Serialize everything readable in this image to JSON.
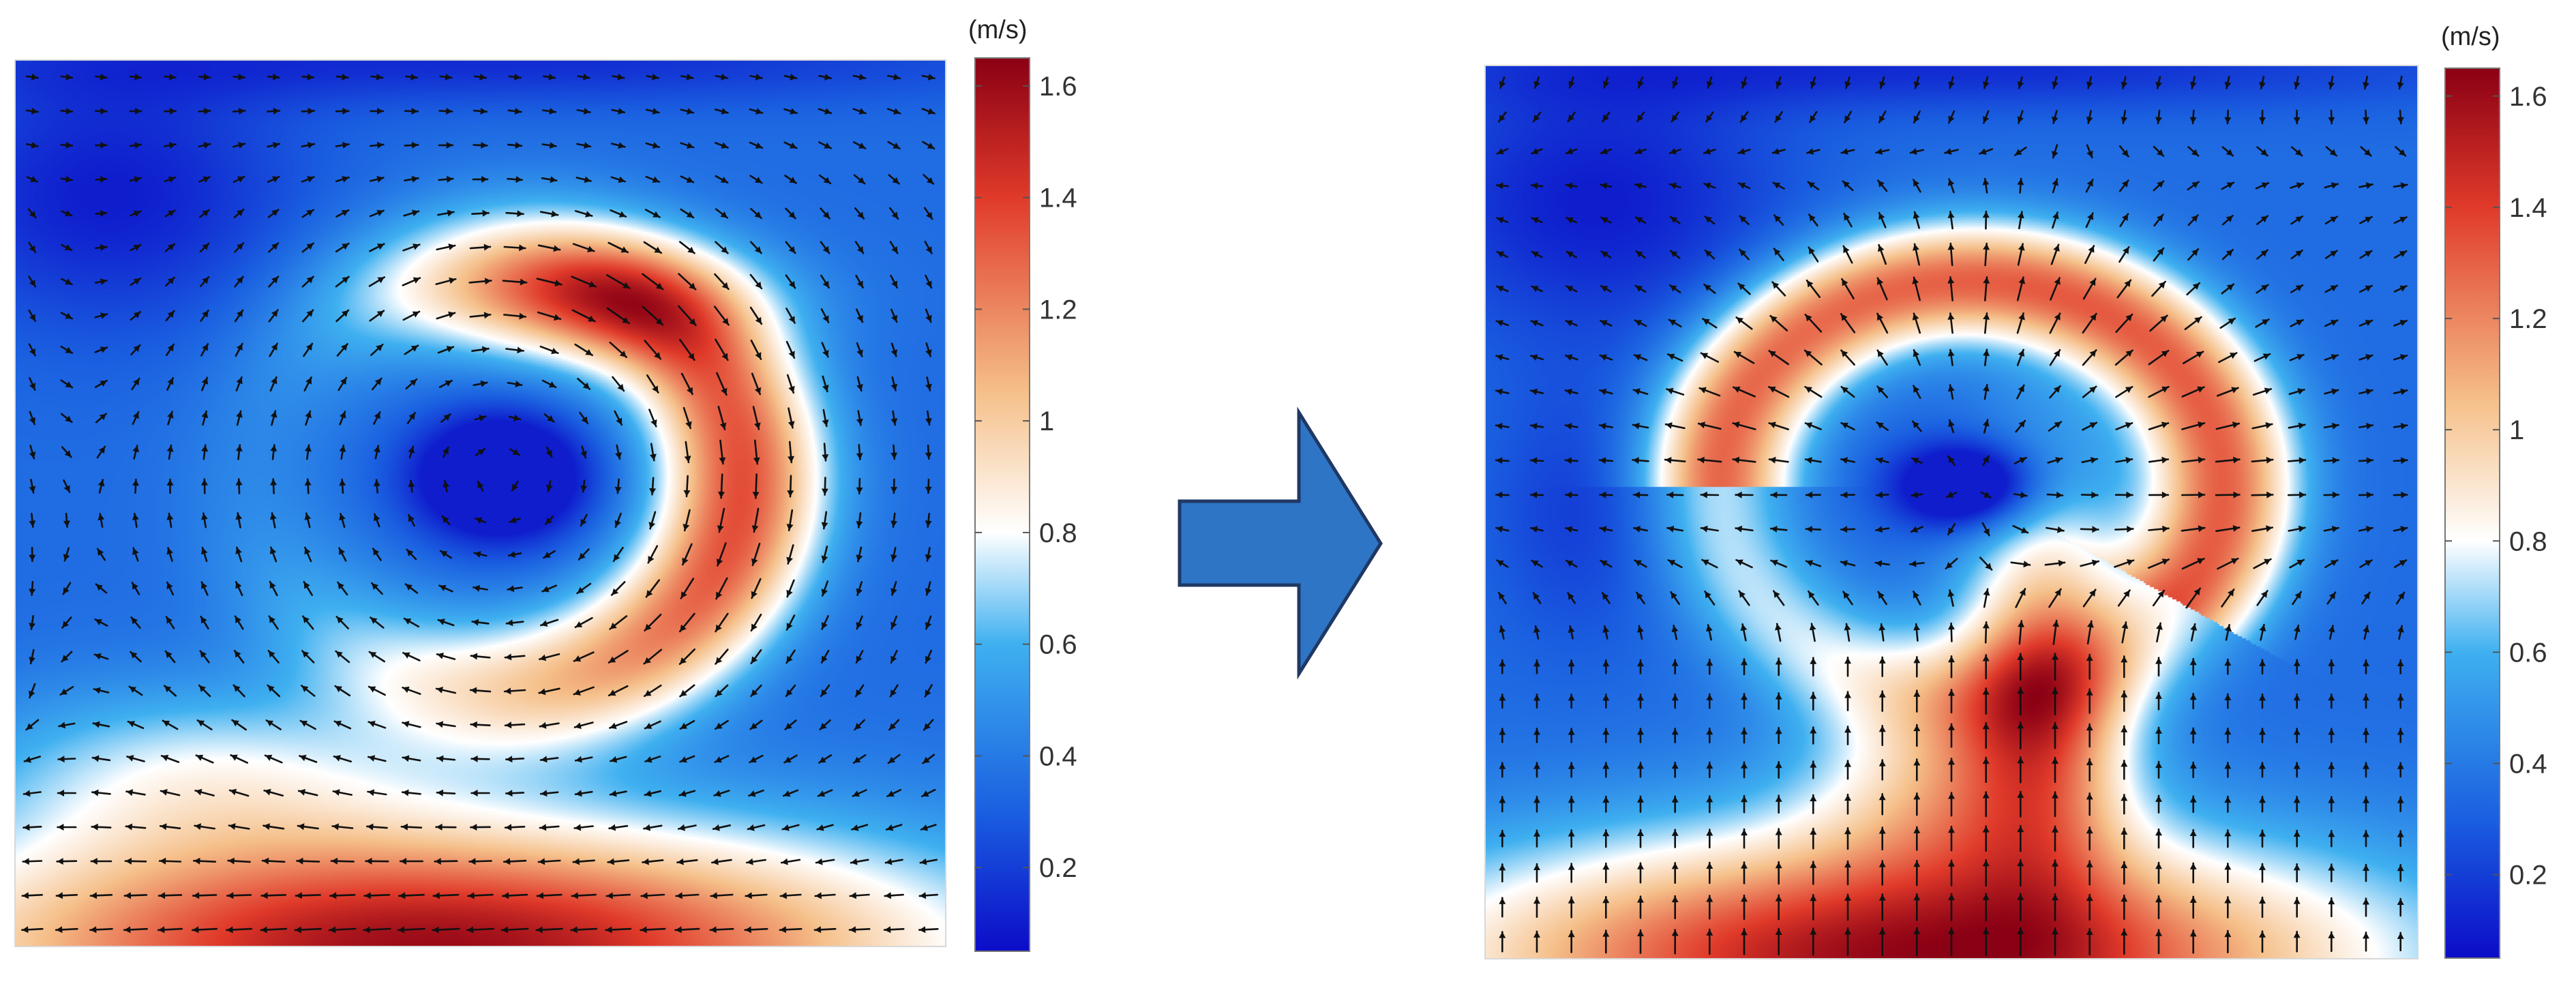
{
  "colorscale": {
    "stops": [
      "#0c0cc8",
      "#1a5fe0",
      "#3fb0f0",
      "#ffffff",
      "#f5c08a",
      "#e03a2a",
      "#8a0014"
    ],
    "stop_values": [
      0.05,
      0.3,
      0.6,
      0.8,
      1.05,
      1.4,
      1.65
    ],
    "range": [
      0.05,
      1.65
    ]
  },
  "chart_data": [
    {
      "type": "heatmap",
      "title": "",
      "description_kind": "velocity magnitude field with velocity vector arrows (before)",
      "colorbar": {
        "unit": "(m/s)",
        "ticks": [
          "0.2",
          "0.4",
          "0.6",
          "0.8",
          "1",
          "1.2",
          "1.4",
          "1.6"
        ],
        "tick_values": [
          0.2,
          0.4,
          0.6,
          0.8,
          1.0,
          1.2,
          1.4,
          1.6
        ],
        "range": [
          0.05,
          1.65
        ]
      },
      "flow_pattern": "vortex",
      "vortex_center": [
        0.52,
        0.47
      ],
      "magnitude_range": [
        0.1,
        1.65
      ]
    },
    {
      "type": "heatmap",
      "title": "",
      "description_kind": "velocity magnitude field with velocity vector arrows (after)",
      "colorbar": {
        "unit": "(m/s)",
        "ticks": [
          "0.2",
          "0.4",
          "0.6",
          "0.8",
          "1",
          "1.2",
          "1.4",
          "1.6"
        ],
        "tick_values": [
          0.2,
          0.4,
          0.6,
          0.8,
          1.0,
          1.2,
          1.4,
          1.6
        ],
        "range": [
          0.05,
          1.65
        ]
      },
      "flow_pattern": "upward-radial",
      "stagnation_center": [
        0.52,
        0.47
      ],
      "magnitude_range": [
        0.1,
        1.65
      ]
    }
  ],
  "arrow_icon": {
    "name": "right-arrow-icon",
    "color": "#2e75c6",
    "stroke": "#1f3864"
  }
}
